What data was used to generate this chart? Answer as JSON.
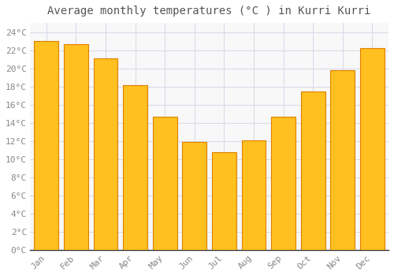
{
  "title": "Average monthly temperatures (°C ) in Kurri Kurri",
  "months": [
    "Jan",
    "Feb",
    "Mar",
    "Apr",
    "May",
    "Jun",
    "Jul",
    "Aug",
    "Sep",
    "Oct",
    "Nov",
    "Dec"
  ],
  "values": [
    23.0,
    22.7,
    21.1,
    18.2,
    14.7,
    11.9,
    10.8,
    12.1,
    14.7,
    17.5,
    19.8,
    22.2
  ],
  "bar_color": "#FFC020",
  "bar_edge_color": "#E08000",
  "ylim": [
    0,
    25
  ],
  "yticks": [
    0,
    2,
    4,
    6,
    8,
    10,
    12,
    14,
    16,
    18,
    20,
    22,
    24
  ],
  "ytick_labels": [
    "0°C",
    "2°C",
    "4°C",
    "6°C",
    "8°C",
    "10°C",
    "12°C",
    "14°C",
    "16°C",
    "18°C",
    "20°C",
    "22°C",
    "24°C"
  ],
  "background_color": "#ffffff",
  "plot_bg_color": "#f8f8f8",
  "grid_color": "#d8dce8",
  "title_fontsize": 10,
  "tick_fontsize": 8,
  "font_family": "monospace",
  "tick_color": "#888888",
  "bar_width": 0.82
}
